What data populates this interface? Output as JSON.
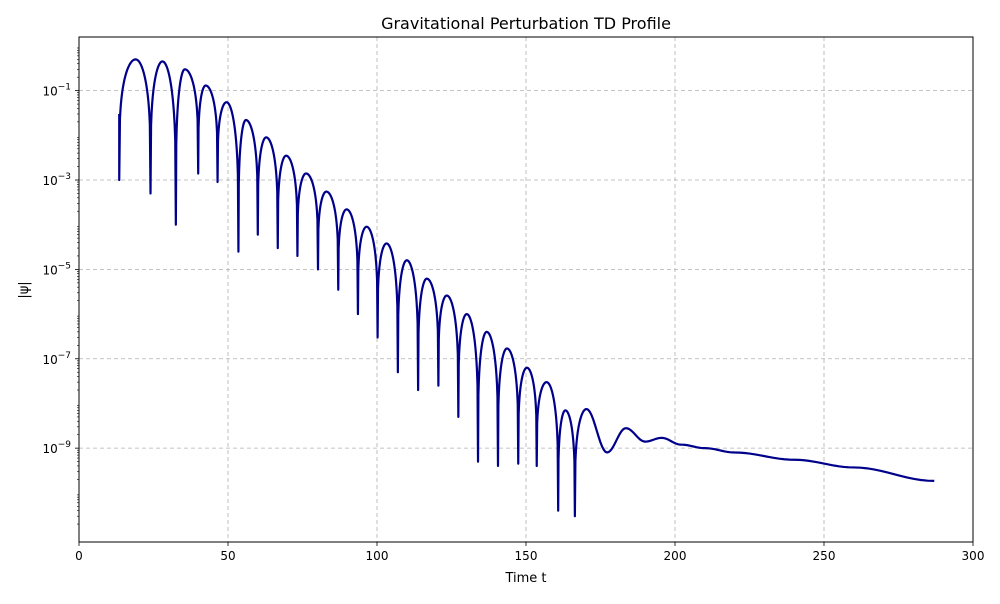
{
  "chart_data": {
    "type": "line",
    "title": "Gravitational Perturbation TD Profile",
    "xlabel": "Time t",
    "ylabel": "|ψ|",
    "xlim": [
      0,
      300
    ],
    "ylim_log10": [
      -11.1,
      0.2
    ],
    "yscale": "log",
    "grid": true,
    "x_ticks": [
      0,
      50,
      100,
      150,
      200,
      250,
      300
    ],
    "x_tick_labels": [
      "0",
      "50",
      "100",
      "150",
      "200",
      "250",
      "300"
    ],
    "y_ticks_log10": [
      -9,
      -7,
      -5,
      -3,
      -1
    ],
    "y_tick_labels": [
      {
        "base": "10",
        "exp": "−9"
      },
      {
        "base": "10",
        "exp": "−7"
      },
      {
        "base": "10",
        "exp": "−5"
      },
      {
        "base": "10",
        "exp": "−3"
      },
      {
        "base": "10",
        "exp": "−1"
      }
    ],
    "series": [
      {
        "color": "#00008b",
        "envelope": {
          "peaks": [
            [
              19,
              0.5
            ],
            [
              28,
              0.45
            ],
            [
              35.5,
              0.3
            ],
            [
              42.5,
              0.13
            ],
            [
              49.5,
              0.055
            ],
            [
              56,
              0.022
            ],
            [
              62.8,
              0.009
            ],
            [
              69.5,
              0.0035
            ],
            [
              76.2,
              0.0014
            ],
            [
              83,
              0.00055
            ],
            [
              89.8,
              0.00022
            ],
            [
              96.5,
              9e-05
            ],
            [
              103.2,
              3.8e-05
            ],
            [
              110,
              1.6e-05
            ],
            [
              116.7,
              6.2e-06
            ],
            [
              123.4,
              2.6e-06
            ],
            [
              130.1,
              1e-06
            ],
            [
              136.8,
              4e-07
            ],
            [
              143.6,
              1.7e-07
            ],
            [
              150.3,
              6.3e-08
            ],
            [
              156.9,
              3e-08
            ],
            [
              163.2,
              7e-09
            ],
            [
              170.3,
              7.5e-09
            ]
          ],
          "zeros": [
            [
              24,
              0.0005
            ],
            [
              32.5,
              0.0001
            ],
            [
              40,
              0.0014
            ],
            [
              46.5,
              0.0009
            ],
            [
              53.5,
              2.5e-05
            ],
            [
              60,
              6e-05
            ],
            [
              66.7,
              3e-05
            ],
            [
              73.3,
              2e-05
            ],
            [
              80.2,
              1e-05
            ],
            [
              87,
              3.5e-06
            ],
            [
              93.6,
              1e-06
            ],
            [
              100.2,
              3e-07
            ],
            [
              107,
              5e-08
            ],
            [
              113.8,
              2e-08
            ],
            [
              120.6,
              2.5e-08
            ],
            [
              127.3,
              5e-09
            ],
            [
              133.9,
              5e-10
            ],
            [
              140.6,
              4e-10
            ],
            [
              147.4,
              4.5e-10
            ],
            [
              153.6,
              4e-10
            ],
            [
              160.8,
              4e-11
            ],
            [
              166.4,
              3e-11
            ]
          ],
          "start": [
            13.5,
            0.03
          ],
          "start_dip": [
            13.5,
            0.001
          ],
          "tail": [
            [
              177.2,
              8e-10
            ],
            [
              183.5,
              2.8e-09
            ],
            [
              190,
              1.4e-09
            ],
            [
              195.5,
              1.7e-09
            ],
            [
              202,
              1.2e-09
            ],
            [
              210,
              1e-09
            ],
            [
              220,
              8e-10
            ],
            [
              240,
              5.5e-10
            ],
            [
              260,
              3.7e-10
            ],
            [
              287,
              1.85e-10
            ]
          ]
        }
      }
    ]
  }
}
